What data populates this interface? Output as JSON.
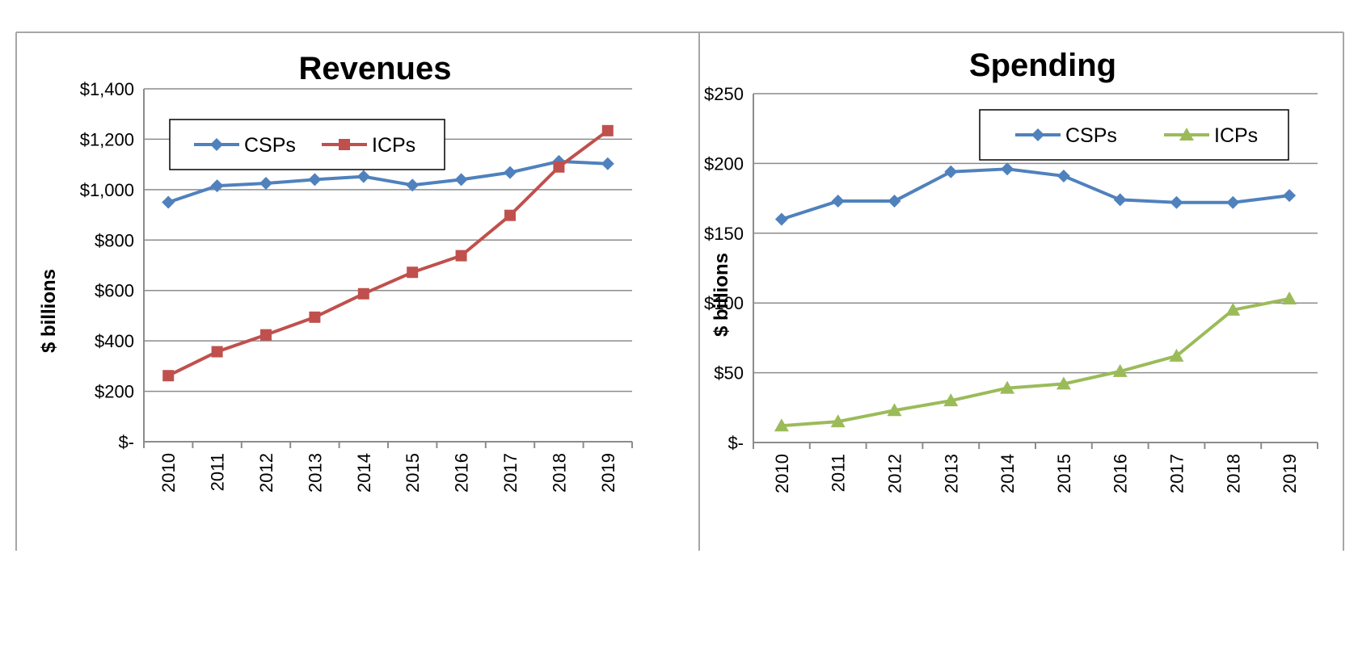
{
  "colors": {
    "csp_line": "#4f81bd",
    "icp_revenue_line": "#c0504d",
    "icp_spending_line": "#9bbb59",
    "grid": "#8c8c8c",
    "frame": "#a6a6a6",
    "text": "#000000"
  },
  "chart_data": [
    {
      "type": "line",
      "title": "Revenues",
      "xlabel": "",
      "ylabel": "$ billions",
      "ylim": [
        0,
        1400
      ],
      "y_ticks": [
        0,
        200,
        400,
        600,
        800,
        1000,
        1200,
        1400
      ],
      "y_tick_labels": [
        "$-",
        "$200",
        "$400",
        "$600",
        "$800",
        "$1,000",
        "$1,200",
        "$1,400"
      ],
      "categories": [
        "2010",
        "2011",
        "2012",
        "2013",
        "2014",
        "2015",
        "2016",
        "2017",
        "2018",
        "2019"
      ],
      "grid": true,
      "legend_position": "top-left",
      "series": [
        {
          "name": "CSPs",
          "marker": "diamond",
          "values": [
            950,
            1015,
            1025,
            1040,
            1052,
            1018,
            1040,
            1068,
            1112,
            1103
          ]
        },
        {
          "name": "ICPs",
          "marker": "square",
          "values": [
            262,
            357,
            424,
            494,
            587,
            672,
            738,
            898,
            1090,
            1234
          ]
        }
      ]
    },
    {
      "type": "line",
      "title": "Spending",
      "xlabel": "",
      "ylabel": "$ billions",
      "ylim": [
        0,
        250
      ],
      "y_ticks": [
        0,
        50,
        100,
        150,
        200,
        250
      ],
      "y_tick_labels": [
        "$-",
        "$50",
        "$100",
        "$150",
        "$200",
        "$250"
      ],
      "categories": [
        "2010",
        "2011",
        "2012",
        "2013",
        "2014",
        "2015",
        "2016",
        "2017",
        "2018",
        "2019"
      ],
      "grid": true,
      "legend_position": "top-right",
      "series": [
        {
          "name": "CSPs",
          "marker": "diamond",
          "values": [
            160,
            173,
            173,
            194,
            196,
            191,
            174,
            172,
            172,
            177
          ]
        },
        {
          "name": "ICPs",
          "marker": "triangle",
          "values": [
            12,
            15,
            23,
            30,
            39,
            42,
            51,
            62,
            95,
            103
          ]
        }
      ]
    }
  ]
}
